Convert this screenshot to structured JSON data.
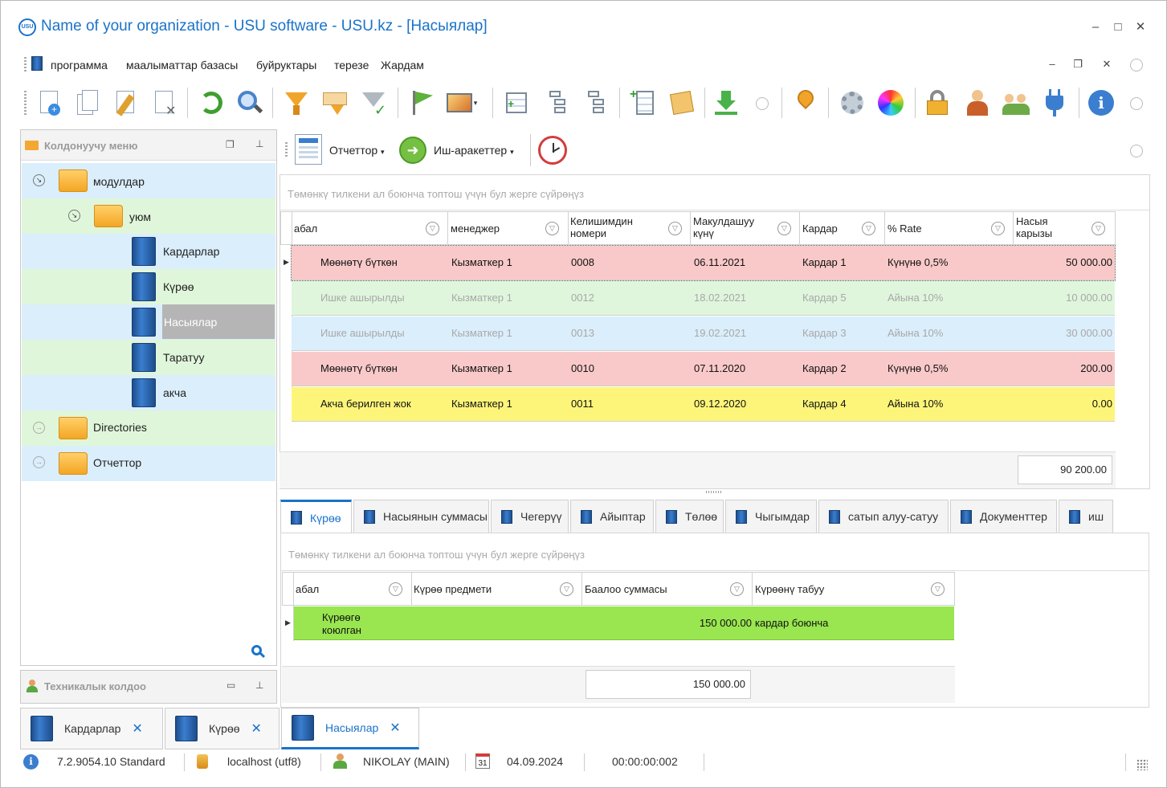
{
  "window": {
    "title": "Name of your organization - USU software - USU.kz - [Насыялар]",
    "logo_text": "USU"
  },
  "menu": [
    "программа",
    "маалыматтар базасы",
    "буйруктары",
    "терезе",
    "Жардам"
  ],
  "left_panel": {
    "title": "Колдонуучу меню",
    "tree": [
      {
        "label": "модулдар"
      },
      {
        "label": "уюм"
      },
      {
        "label": "Кардарлар"
      },
      {
        "label": "Күрөө"
      },
      {
        "label": "Насыялар"
      },
      {
        "label": "Таратуу"
      },
      {
        "label": "акча"
      },
      {
        "label": "Directories"
      },
      {
        "label": "Отчеттор"
      }
    ],
    "bottom_title": "Техникалык колдоо"
  },
  "subtoolbar": {
    "reports": "Отчеттор",
    "actions": "Иш-аракеттер"
  },
  "main_grid": {
    "group_hint": "Төмөнкү тилкени ал боюнча топтош үчүн бул жерге сүйрөңүз",
    "columns": [
      "абал",
      "менеджер",
      "Келишимдин номери",
      "Макулдашуу күнү",
      "Кардар",
      "% Rate",
      "Насыя карызы"
    ],
    "rows": [
      {
        "status": "Мөөнөтү бүткөн",
        "manager": "Кызматкер 1",
        "number": "0008",
        "date": "06.11.2021",
        "client": "Кардар 1",
        "rate": "Күнүнө 0,5%",
        "debt": "50 000.00",
        "bg": "#f9c9c9",
        "dim": false
      },
      {
        "status": "Ишке ашырылды",
        "manager": "Кызматкер 1",
        "number": "0012",
        "date": "18.02.2021",
        "client": "Кардар 5",
        "rate": "Айына 10%",
        "debt": "10 000.00",
        "bg": "#dff6dc",
        "dim": true
      },
      {
        "status": "Ишке ашырылды",
        "manager": "Кызматкер 1",
        "number": "0013",
        "date": "19.02.2021",
        "client": "Кардар 3",
        "rate": "Айына 10%",
        "debt": "30 000.00",
        "bg": "#dbeefc",
        "dim": true
      },
      {
        "status": "Мөөнөтү бүткөн",
        "manager": "Кызматкер 1",
        "number": "0010",
        "date": "07.11.2020",
        "client": "Кардар 2",
        "rate": "Күнүнө 0,5%",
        "debt": "200.00",
        "bg": "#f9c9c9",
        "dim": false
      },
      {
        "status": "Акча берилген жок",
        "manager": "Кызматкер 1",
        "number": "0011",
        "date": "09.12.2020",
        "client": "Кардар 4",
        "rate": "Айына 10%",
        "debt": "0.00",
        "bg": "#fdf57a",
        "dim": false
      }
    ],
    "total": "90 200.00"
  },
  "detail_tabs": [
    "Күрөө",
    "Насыянын суммасы",
    "Чегерүү",
    "Айыптар",
    "Төлөө",
    "Чыгымдар",
    "сатып алуу-сатуу",
    "Документтер",
    "иш"
  ],
  "detail_grid": {
    "group_hint": "Төмөнкү тилкени ал боюнча топтош үчүн бул жерге сүйрөңүз",
    "columns": [
      "абал",
      "Күрөө предмети",
      "Баалоо суммасы",
      "Күрөөнү табуу"
    ],
    "row": {
      "status": "Күрөөгө коюлган",
      "subject": "",
      "amount": "150 000.00",
      "source": "кардар боюнча"
    },
    "total": "150 000.00"
  },
  "window_tabs": [
    "Кардарлар",
    "Күрөө",
    "Насыялар"
  ],
  "status": {
    "version": "7.2.9054.10 Standard",
    "db": "localhost (utf8)",
    "user": "NIKOLAY (MAIN)",
    "calendar_day": "31",
    "date": "04.09.2024",
    "timer": "00:00:00:002"
  },
  "colors": {
    "accent": "#1a73c9",
    "row_selected_tree": "#b5b5b5",
    "detail_row": "#99e650"
  }
}
